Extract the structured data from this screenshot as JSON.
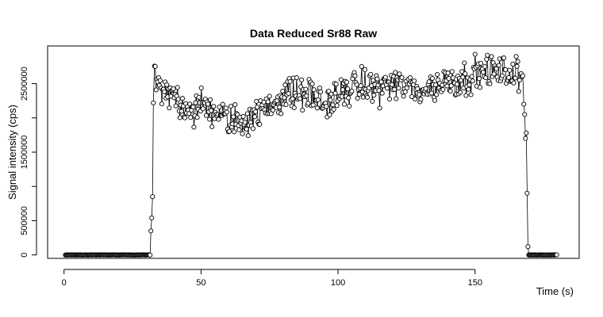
{
  "chart_data": {
    "type": "scatter",
    "title": "Data Reduced Sr88 Raw",
    "xlabel": "Time (s)",
    "ylabel": "Signal intensity (cps)",
    "xlim": [
      -6,
      188
    ],
    "ylim": [
      -50000,
      3050000
    ],
    "x_ticks": [
      0,
      50,
      100,
      150
    ],
    "x_tick_labels": [
      "0",
      "50",
      "100",
      "150"
    ],
    "y_ticks": [
      0,
      500000,
      1500000,
      2500000
    ],
    "y_tick_labels": [
      "0",
      "500000",
      "1500000",
      "2500000"
    ],
    "y_minor_ticks": [
      1000000,
      2000000
    ],
    "markers": "open circles joined by a thin line",
    "series": [
      {
        "name": "Sr88",
        "segments": [
          {
            "phase": "background",
            "t_start": 0.5,
            "t_end": 31.5,
            "value": 0
          },
          {
            "phase": "rise",
            "t": [
              31.7,
              32.0,
              32.3,
              32.6
            ],
            "values": [
              350000,
              540000,
              850000,
              2220000
            ]
          },
          {
            "phase": "signal",
            "t_start": 33,
            "t_end": 167.5,
            "anchor_t": [
              33,
              36,
              40,
              45,
              50,
              55,
              60,
              65,
              70,
              75,
              80,
              85,
              90,
              95,
              100,
              105,
              110,
              115,
              120,
              125,
              130,
              135,
              140,
              145,
              150,
              155,
              160,
              165,
              167.5
            ],
            "anchor_values": [
              2650000,
              2400000,
              2300000,
              2050000,
              2200000,
              2100000,
              1950000,
              1950000,
              2050000,
              2150000,
              2350000,
              2350000,
              2350000,
              2200000,
              2300000,
              2450000,
              2450000,
              2450000,
              2500000,
              2450000,
              2400000,
              2450000,
              2550000,
              2550000,
              2650000,
              2700000,
              2650000,
              2650000,
              2500000
            ]
          },
          {
            "phase": "fall",
            "t": [
              167.8,
              168.1,
              168.4,
              168.7,
              169.0,
              169.3
            ],
            "values": [
              2200000,
              2050000,
              1700000,
              1780000,
              900000,
              120000
            ]
          },
          {
            "phase": "background",
            "t_start": 169.6,
            "t_end": 180,
            "value": 0
          }
        ]
      }
    ]
  }
}
